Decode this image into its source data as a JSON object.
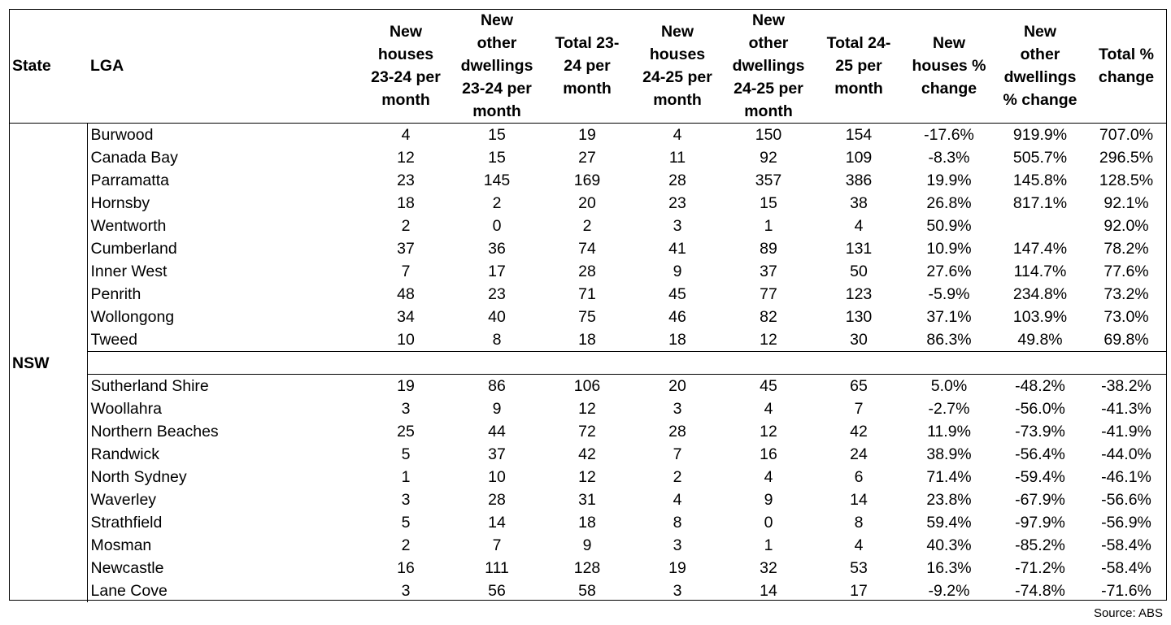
{
  "chart_data": {
    "type": "table",
    "columns": [
      "State",
      "LGA",
      "New houses 23-24 per month",
      "New other dwellings 23-24 per month",
      "Total 23-24 per month",
      "New houses 24-25 per month",
      "New other dwellings 24-25 per month",
      "Total 24-25 per month",
      "New houses % change",
      "New other dwellings % change",
      "Total % change"
    ],
    "state": "NSW",
    "top_rows": [
      [
        "Burwood",
        "4",
        "15",
        "19",
        "4",
        "150",
        "154",
        "-17.6%",
        "919.9%",
        "707.0%"
      ],
      [
        "Canada Bay",
        "12",
        "15",
        "27",
        "11",
        "92",
        "109",
        "-8.3%",
        "505.7%",
        "296.5%"
      ],
      [
        "Parramatta",
        "23",
        "145",
        "169",
        "28",
        "357",
        "386",
        "19.9%",
        "145.8%",
        "128.5%"
      ],
      [
        "Hornsby",
        "18",
        "2",
        "20",
        "23",
        "15",
        "38",
        "26.8%",
        "817.1%",
        "92.1%"
      ],
      [
        "Wentworth",
        "2",
        "0",
        "2",
        "3",
        "1",
        "4",
        "50.9%",
        "",
        "92.0%"
      ],
      [
        "Cumberland",
        "37",
        "36",
        "74",
        "41",
        "89",
        "131",
        "10.9%",
        "147.4%",
        "78.2%"
      ],
      [
        "Inner West",
        "7",
        "17",
        "28",
        "9",
        "37",
        "50",
        "27.6%",
        "114.7%",
        "77.6%"
      ],
      [
        "Penrith",
        "48",
        "23",
        "71",
        "45",
        "77",
        "123",
        "-5.9%",
        "234.8%",
        "73.2%"
      ],
      [
        "Wollongong",
        "34",
        "40",
        "75",
        "46",
        "82",
        "130",
        "37.1%",
        "103.9%",
        "73.0%"
      ],
      [
        "Tweed",
        "10",
        "8",
        "18",
        "18",
        "12",
        "30",
        "86.3%",
        "49.8%",
        "69.8%"
      ]
    ],
    "bottom_rows": [
      [
        "Sutherland Shire",
        "19",
        "86",
        "106",
        "20",
        "45",
        "65",
        "5.0%",
        "-48.2%",
        "-38.2%"
      ],
      [
        "Woollahra",
        "3",
        "9",
        "12",
        "3",
        "4",
        "7",
        "-2.7%",
        "-56.0%",
        "-41.3%"
      ],
      [
        "Northern Beaches",
        "25",
        "44",
        "72",
        "28",
        "12",
        "42",
        "11.9%",
        "-73.9%",
        "-41.9%"
      ],
      [
        "Randwick",
        "5",
        "37",
        "42",
        "7",
        "16",
        "24",
        "38.9%",
        "-56.4%",
        "-44.0%"
      ],
      [
        "North Sydney",
        "1",
        "10",
        "12",
        "2",
        "4",
        "6",
        "71.4%",
        "-59.4%",
        "-46.1%"
      ],
      [
        "Waverley",
        "3",
        "28",
        "31",
        "4",
        "9",
        "14",
        "23.8%",
        "-67.9%",
        "-56.6%"
      ],
      [
        "Strathfield",
        "5",
        "14",
        "18",
        "8",
        "0",
        "8",
        "59.4%",
        "-97.9%",
        "-56.9%"
      ],
      [
        "Mosman",
        "2",
        "7",
        "9",
        "3",
        "1",
        "4",
        "40.3%",
        "-85.2%",
        "-58.4%"
      ],
      [
        "Newcastle",
        "16",
        "111",
        "128",
        "19",
        "32",
        "53",
        "16.3%",
        "-71.2%",
        "-58.4%"
      ],
      [
        "Lane Cove",
        "3",
        "56",
        "58",
        "3",
        "14",
        "17",
        "-9.2%",
        "-74.8%",
        "-71.6%"
      ]
    ]
  },
  "header_lines": [
    [
      "State"
    ],
    [
      "LGA"
    ],
    [
      "New",
      "houses",
      "23-24 per",
      "month"
    ],
    [
      "New",
      "other",
      "dwellings",
      "23-24 per",
      "month"
    ],
    [
      "Total 23-",
      "24 per",
      "month"
    ],
    [
      "New",
      "houses",
      "24-25 per",
      "month"
    ],
    [
      "New",
      "other",
      "dwellings",
      "24-25 per",
      "month"
    ],
    [
      "Total 24-",
      "25 per",
      "month"
    ],
    [
      "New",
      "houses %",
      "change"
    ],
    [
      "New",
      "other",
      "dwellings",
      "% change"
    ],
    [
      "Total %",
      "change"
    ]
  ],
  "source": "Source: ABS"
}
